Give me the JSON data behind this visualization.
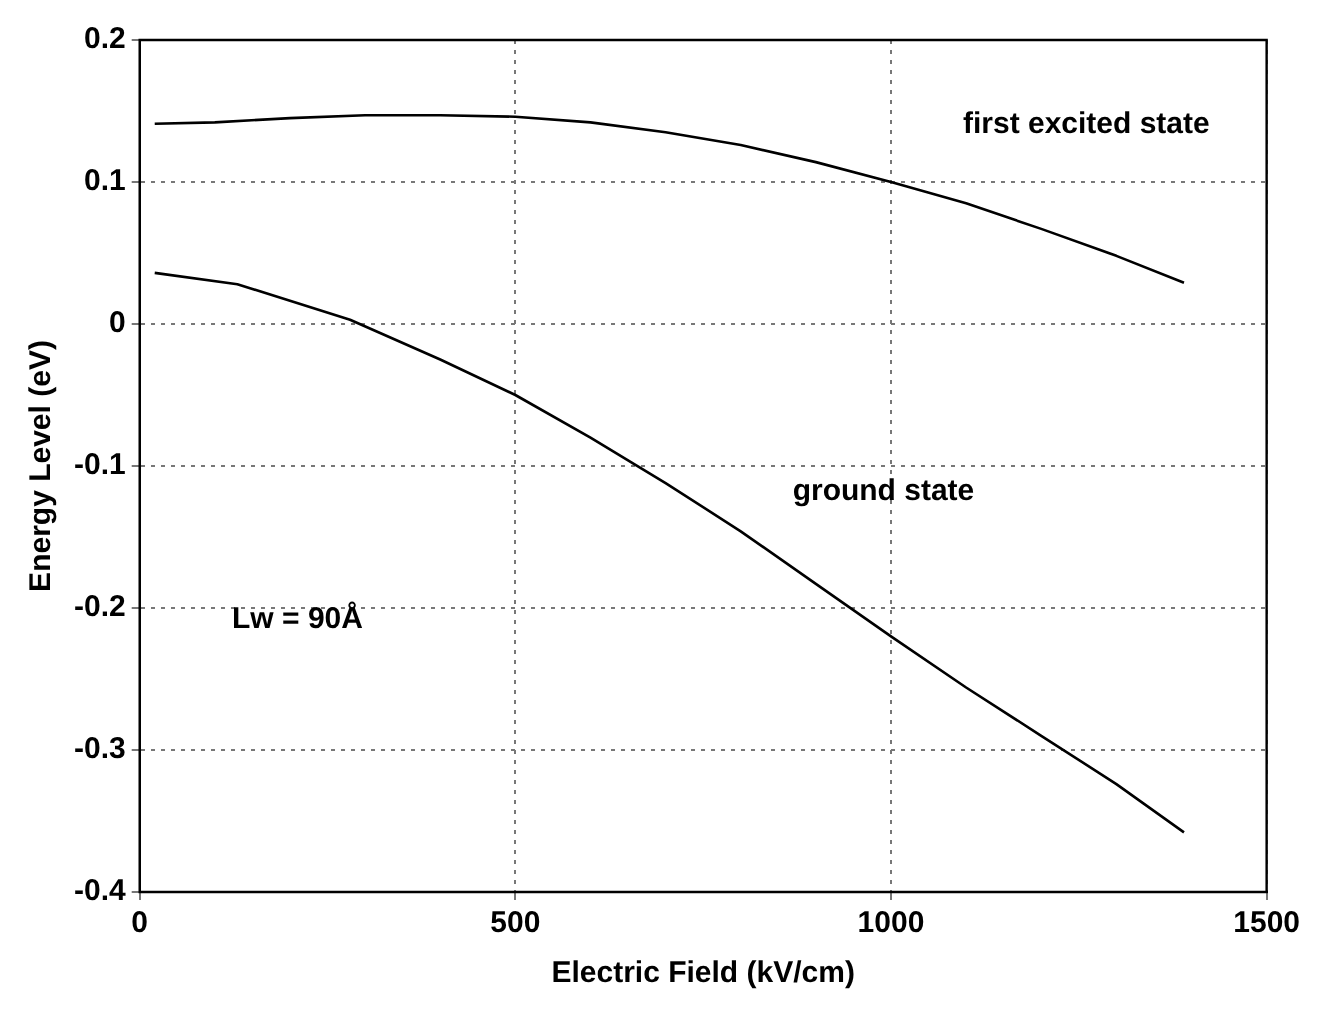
{
  "chart_data": {
    "type": "line",
    "xlabel": "Electric Field (kV/cm)",
    "ylabel": "Energy Level (eV)",
    "xlim": [
      0,
      1500
    ],
    "xticks": [
      0,
      500,
      1000,
      1500
    ],
    "ylim": [
      -0.4,
      0.2
    ],
    "yticks": [
      -0.4,
      -0.3,
      -0.2,
      -0.1,
      0,
      0.1,
      0.2
    ],
    "grid": true,
    "marker": "none",
    "line_style": "solid",
    "series": [
      {
        "color": "#000000",
        "x": [
          20,
          100,
          200,
          300,
          400,
          500,
          600,
          700,
          800,
          900,
          1000,
          1100,
          1200,
          1300,
          1390
        ],
        "values": [
          0.141,
          0.142,
          0.145,
          0.147,
          0.147,
          0.146,
          0.142,
          0.135,
          0.126,
          0.114,
          0.1,
          0.085,
          0.067,
          0.048,
          0.029
        ]
      },
      {
        "color": "#000000",
        "x": [
          20,
          130,
          280,
          400,
          500,
          600,
          700,
          800,
          900,
          1000,
          1100,
          1200,
          1300,
          1390
        ],
        "values": [
          0.036,
          0.028,
          0.003,
          -0.025,
          -0.05,
          -0.08,
          -0.112,
          -0.146,
          -0.183,
          -0.22,
          -0.256,
          -0.29,
          -0.324,
          -0.358
        ]
      }
    ],
    "annotations": [
      "first excited state",
      "ground state",
      "Lw = 90Å"
    ]
  }
}
